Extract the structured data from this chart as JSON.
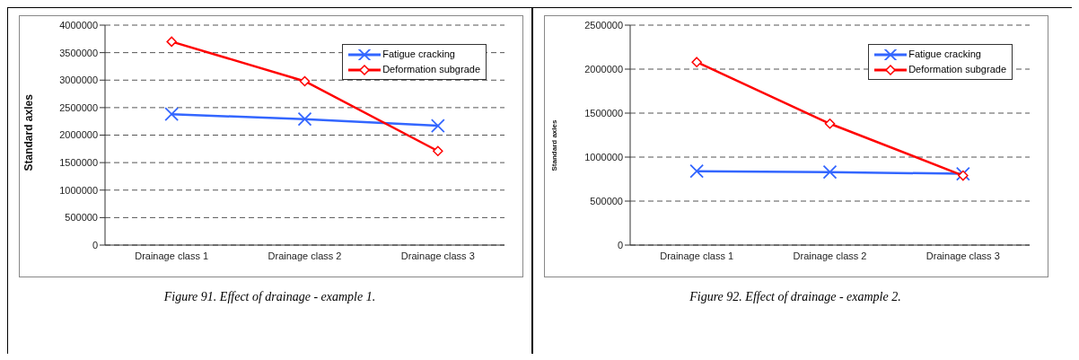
{
  "chart_data": [
    {
      "type": "line",
      "ylabel": "Standard axles",
      "categories": [
        "Drainage class 1",
        "Drainage class 2",
        "Drainage class 3"
      ],
      "series": [
        {
          "name": "Fatigue cracking",
          "color": "#3366ff",
          "marker": "cross",
          "values": [
            2380000,
            2290000,
            2170000
          ]
        },
        {
          "name": "Deformation subgrade",
          "color": "#ff0000",
          "marker": "diamond",
          "values": [
            3700000,
            2980000,
            1710000
          ]
        }
      ],
      "ylim": [
        0,
        4000000
      ],
      "yticks": [
        0,
        500000,
        1000000,
        1500000,
        2000000,
        2500000,
        3000000,
        3500000,
        4000000
      ],
      "grid": "y",
      "legend": "top right",
      "annotations": [
        "Figure 91. Effect of drainage - example 1."
      ]
    },
    {
      "type": "line",
      "ylabel": "Standard axles",
      "categories": [
        "Drainage class 1",
        "Drainage class 2",
        "Drainage class 3"
      ],
      "series": [
        {
          "name": "Fatigue cracking",
          "color": "#3366ff",
          "marker": "cross",
          "values": [
            840000,
            830000,
            810000
          ]
        },
        {
          "name": "Deformation subgrade",
          "color": "#ff0000",
          "marker": "diamond",
          "values": [
            2080000,
            1380000,
            790000
          ]
        }
      ],
      "ylim": [
        0,
        2500000
      ],
      "yticks": [
        0,
        500000,
        1000000,
        1500000,
        2000000,
        2500000
      ],
      "grid": "y",
      "legend": "top right",
      "annotations": [
        "Figure 92. Effect of drainage - example 2."
      ]
    }
  ]
}
